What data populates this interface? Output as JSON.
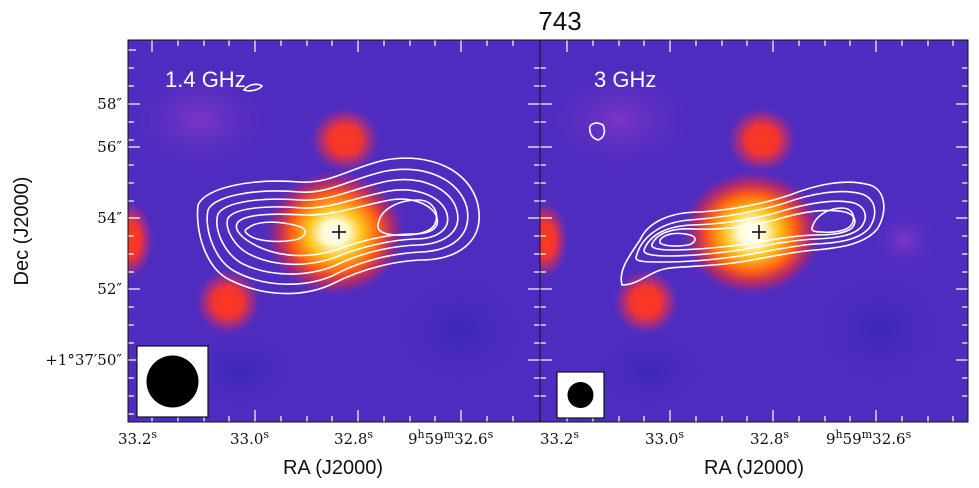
{
  "chart_data": {
    "type": "heatmap",
    "title": "743",
    "colormap": "gnuplot2-like (dark blue / purple / red / yellow / white)",
    "panels": [
      {
        "label": "1.4 GHz",
        "xlabel": "RA (J2000)",
        "ylabel": "Dec (J2000)",
        "x_ticks": [
          "33.2s",
          "33.0s",
          "32.8s",
          "9h59m32.6s"
        ],
        "y_ticks": [
          "58″",
          "56″",
          "54″",
          "52″",
          "+1°37′50″"
        ],
        "beam_shape": "circle, large"
      },
      {
        "label": "3 GHz",
        "xlabel": "RA (J2000)",
        "ylabel": "",
        "x_ticks": [
          "33.2s",
          "33.0s",
          "32.8s",
          "9h59m32.6s"
        ],
        "y_ticks": [],
        "beam_shape": "circle, small"
      }
    ],
    "markers": [
      "+ at optical center"
    ]
  },
  "labels": {
    "title": "743",
    "panel1": "1.4 GHz",
    "panel2": "3 GHz",
    "xlabel1": "RA (J2000)",
    "xlabel2": "RA (J2000)",
    "ylabel": "Dec (J2000)",
    "yticks": [
      "58″",
      "56″",
      "54″",
      "52″",
      "+1°37′50″"
    ],
    "xticks": [
      "33.2",
      "33.0",
      "32.8",
      "32.6"
    ]
  }
}
